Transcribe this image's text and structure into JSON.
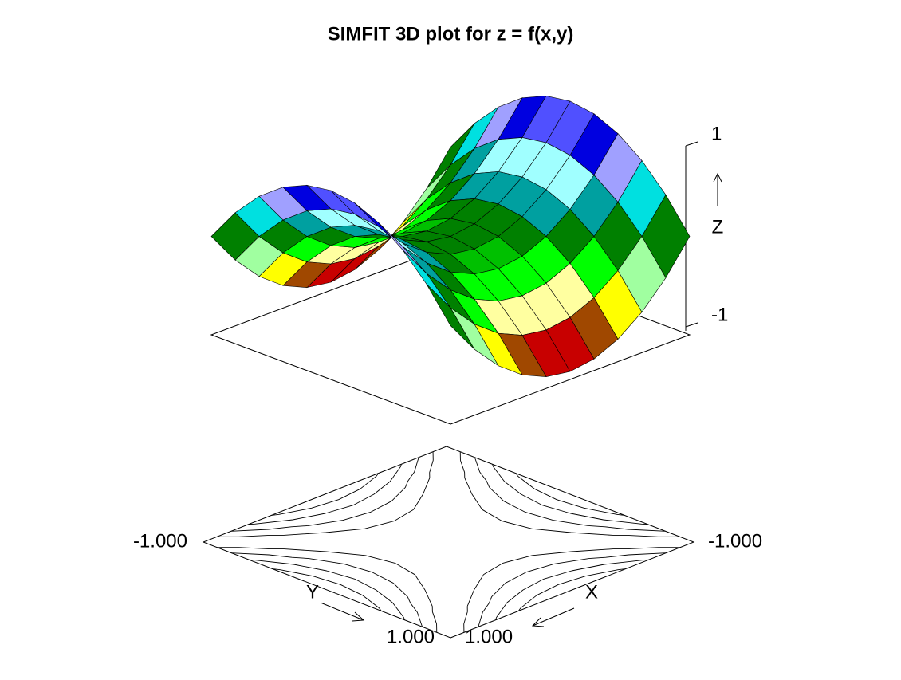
{
  "chart_data": {
    "type": "surface",
    "title": "SIMFIT 3D plot for z = f(x,y)",
    "x_label": "X",
    "y_label": "Y",
    "z_label": "Z",
    "x": [
      -1,
      -0.8,
      -0.6,
      -0.4,
      -0.2,
      0,
      0.2,
      0.4,
      0.6,
      0.8,
      1
    ],
    "y": [
      -1,
      -0.8,
      -0.6,
      -0.4,
      -0.2,
      0,
      0.2,
      0.4,
      0.6,
      0.8,
      1
    ],
    "z": [
      [
        0,
        -0.36,
        -0.64,
        -0.84,
        -0.96,
        -1,
        -0.96,
        -0.84,
        -0.64,
        -0.36,
        0
      ],
      [
        0.36,
        0,
        -0.28,
        -0.48,
        -0.6,
        -0.64,
        -0.6,
        -0.48,
        -0.28,
        0,
        0.36
      ],
      [
        0.64,
        0.28,
        0,
        -0.2,
        -0.32,
        -0.36,
        -0.32,
        -0.2,
        0,
        0.28,
        0.64
      ],
      [
        0.84,
        0.48,
        0.2,
        0,
        -0.12,
        -0.16,
        -0.12,
        0,
        0.2,
        0.48,
        0.84
      ],
      [
        0.96,
        0.6,
        0.32,
        0.12,
        0,
        -0.04,
        0,
        0.12,
        0.32,
        0.6,
        0.96
      ],
      [
        1,
        0.64,
        0.36,
        0.16,
        0.04,
        0,
        0.04,
        0.16,
        0.36,
        0.64,
        1
      ],
      [
        0.96,
        0.6,
        0.32,
        0.12,
        0,
        -0.04,
        0,
        0.12,
        0.32,
        0.6,
        0.96
      ],
      [
        0.84,
        0.48,
        0.2,
        0,
        -0.12,
        -0.16,
        -0.12,
        0,
        0.2,
        0.48,
        0.84
      ],
      [
        0.64,
        0.28,
        0,
        -0.2,
        -0.32,
        -0.36,
        -0.32,
        -0.2,
        0,
        0.28,
        0.64
      ],
      [
        0.36,
        0,
        -0.28,
        -0.48,
        -0.6,
        -0.64,
        -0.6,
        -0.48,
        -0.28,
        0,
        0.36
      ],
      [
        0,
        -0.36,
        -0.64,
        -0.84,
        -0.96,
        -1,
        -0.96,
        -0.84,
        -0.64,
        -0.36,
        0
      ]
    ],
    "xlim": [
      -1,
      1
    ],
    "ylim": [
      -1,
      1
    ],
    "zlim": [
      -1,
      1
    ],
    "xticks": [
      {
        "value": -1,
        "label": "-1.000"
      },
      {
        "value": 1,
        "label": "1.000"
      }
    ],
    "yticks": [
      {
        "value": -1,
        "label": "-1.000"
      },
      {
        "value": 1,
        "label": "1.000"
      }
    ],
    "zticks": [
      -1,
      1
    ],
    "contour_levels": [
      -0.8,
      -0.6,
      -0.4,
      -0.2,
      0.2,
      0.4,
      0.6,
      0.8
    ],
    "colors": [
      "#ff0000",
      "#c80000",
      "#a04800",
      "#ffff00",
      "#ffffa0",
      "#a0ffa0",
      "#00ff00",
      "#00c000",
      "#008000",
      "#00a0a0",
      "#00e0e0",
      "#a0ffff",
      "#a0a0ff",
      "#0000e0",
      "#5050ff",
      "#ff40ff"
    ]
  }
}
